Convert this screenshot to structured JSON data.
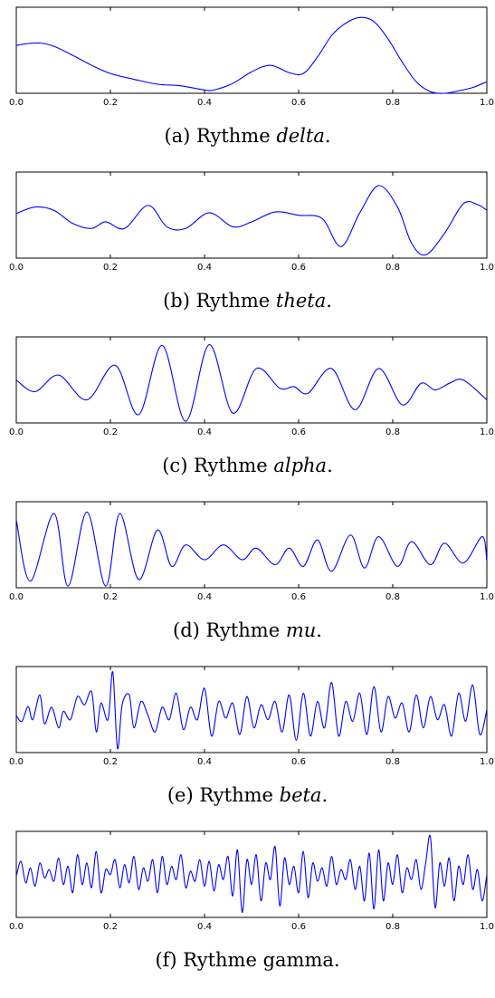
{
  "chart_data": [
    {
      "type": "line",
      "caption": {
        "prefix": "(a) Rythme ",
        "name": "delta",
        "name_italic": true,
        "suffix": "."
      },
      "xlim": [
        0.0,
        1.0
      ],
      "ylim": [
        0,
        1
      ],
      "xticks": [
        "0.0",
        "0.2",
        "0.4",
        "0.6",
        "0.8",
        "1.0"
      ],
      "x": [
        0.0,
        0.02,
        0.05,
        0.08,
        0.12,
        0.16,
        0.2,
        0.25,
        0.3,
        0.35,
        0.4,
        0.42,
        0.46,
        0.5,
        0.54,
        0.58,
        0.61,
        0.64,
        0.67,
        0.7,
        0.73,
        0.76,
        0.79,
        0.82,
        0.85,
        0.88,
        0.91,
        0.94,
        0.97,
        1.0
      ],
      "values": [
        0.58,
        0.6,
        0.61,
        0.57,
        0.46,
        0.34,
        0.24,
        0.17,
        0.11,
        0.09,
        0.04,
        0.04,
        0.12,
        0.26,
        0.34,
        0.25,
        0.24,
        0.44,
        0.7,
        0.85,
        0.92,
        0.87,
        0.66,
        0.38,
        0.14,
        0.02,
        0.0,
        0.03,
        0.07,
        0.14
      ]
    },
    {
      "type": "line",
      "caption": {
        "prefix": "(b) Rythme ",
        "name": "theta",
        "name_italic": true,
        "suffix": "."
      },
      "xlim": [
        0.0,
        1.0
      ],
      "ylim": [
        0,
        1
      ],
      "xticks": [
        "0.0",
        "0.2",
        "0.4",
        "0.6",
        "0.8",
        "1.0"
      ],
      "x": [
        0.0,
        0.04,
        0.08,
        0.12,
        0.16,
        0.19,
        0.23,
        0.28,
        0.32,
        0.36,
        0.41,
        0.46,
        0.5,
        0.55,
        0.6,
        0.65,
        0.69,
        0.73,
        0.77,
        0.81,
        0.84,
        0.87,
        0.91,
        0.95,
        0.98,
        1.0
      ],
      "values": [
        0.54,
        0.62,
        0.58,
        0.42,
        0.36,
        0.44,
        0.36,
        0.64,
        0.38,
        0.36,
        0.55,
        0.38,
        0.44,
        0.56,
        0.52,
        0.48,
        0.14,
        0.55,
        0.88,
        0.62,
        0.18,
        0.04,
        0.3,
        0.66,
        0.65,
        0.58
      ]
    },
    {
      "type": "line",
      "caption": {
        "prefix": "(c) Rythme ",
        "name": "alpha",
        "name_italic": true,
        "suffix": "."
      },
      "xlim": [
        0.0,
        1.0
      ],
      "ylim": [
        0,
        1
      ],
      "xticks": [
        "0.0",
        "0.2",
        "0.4",
        "0.6",
        "0.8",
        "1.0"
      ],
      "x": [
        0.0,
        0.04,
        0.09,
        0.15,
        0.21,
        0.26,
        0.31,
        0.36,
        0.41,
        0.46,
        0.51,
        0.56,
        0.59,
        0.62,
        0.67,
        0.72,
        0.77,
        0.82,
        0.86,
        0.89,
        0.92,
        0.95,
        1.0
      ],
      "values": [
        0.52,
        0.38,
        0.58,
        0.28,
        0.7,
        0.1,
        0.94,
        0.02,
        0.95,
        0.12,
        0.66,
        0.42,
        0.44,
        0.36,
        0.66,
        0.16,
        0.66,
        0.22,
        0.48,
        0.4,
        0.48,
        0.52,
        0.28
      ]
    },
    {
      "type": "line",
      "caption": {
        "prefix": "(d) Rythme ",
        "name": "mu",
        "name_italic": true,
        "suffix": "."
      },
      "xlim": [
        0.0,
        1.0
      ],
      "ylim": [
        0,
        1
      ],
      "xticks": [
        "0.0",
        "0.2",
        "0.4",
        "0.6",
        "0.8",
        "1.0"
      ],
      "x": [
        0.0,
        0.03,
        0.08,
        0.11,
        0.15,
        0.19,
        0.22,
        0.26,
        0.3,
        0.33,
        0.36,
        0.4,
        0.44,
        0.48,
        0.51,
        0.55,
        0.58,
        0.61,
        0.64,
        0.67,
        0.71,
        0.74,
        0.77,
        0.81,
        0.84,
        0.88,
        0.91,
        0.95,
        0.99,
        1.0
      ],
      "values": [
        0.82,
        0.08,
        0.9,
        0.02,
        0.92,
        0.02,
        0.9,
        0.1,
        0.7,
        0.26,
        0.52,
        0.34,
        0.52,
        0.34,
        0.48,
        0.28,
        0.48,
        0.26,
        0.58,
        0.2,
        0.64,
        0.24,
        0.62,
        0.26,
        0.56,
        0.28,
        0.54,
        0.3,
        0.62,
        0.32
      ]
    },
    {
      "type": "line",
      "caption": {
        "prefix": "(e) Rythme ",
        "name": "beta",
        "name_italic": true,
        "suffix": "."
      },
      "xlim": [
        0.0,
        1.0
      ],
      "ylim": [
        0,
        1
      ],
      "xticks": [
        "0.0",
        "0.2",
        "0.4",
        "0.6",
        "0.8",
        "1.0"
      ],
      "x": [
        0.0,
        0.012,
        0.025,
        0.035,
        0.05,
        0.06,
        0.075,
        0.09,
        0.1,
        0.115,
        0.13,
        0.145,
        0.16,
        0.17,
        0.18,
        0.195,
        0.205,
        0.215,
        0.225,
        0.24,
        0.25,
        0.265,
        0.28,
        0.295,
        0.31,
        0.325,
        0.34,
        0.355,
        0.37,
        0.385,
        0.4,
        0.415,
        0.43,
        0.445,
        0.46,
        0.475,
        0.49,
        0.505,
        0.52,
        0.535,
        0.55,
        0.565,
        0.58,
        0.595,
        0.61,
        0.625,
        0.64,
        0.655,
        0.67,
        0.685,
        0.7,
        0.715,
        0.73,
        0.745,
        0.76,
        0.775,
        0.79,
        0.805,
        0.82,
        0.835,
        0.85,
        0.865,
        0.88,
        0.895,
        0.91,
        0.925,
        0.94,
        0.955,
        0.97,
        0.985,
        1.0
      ],
      "values": [
        0.45,
        0.38,
        0.56,
        0.4,
        0.7,
        0.35,
        0.55,
        0.3,
        0.5,
        0.4,
        0.68,
        0.58,
        0.74,
        0.25,
        0.6,
        0.4,
        0.98,
        0.05,
        0.58,
        0.7,
        0.3,
        0.62,
        0.45,
        0.25,
        0.55,
        0.4,
        0.72,
        0.28,
        0.55,
        0.4,
        0.78,
        0.2,
        0.62,
        0.42,
        0.6,
        0.22,
        0.68,
        0.3,
        0.58,
        0.4,
        0.62,
        0.25,
        0.7,
        0.15,
        0.72,
        0.2,
        0.62,
        0.3,
        0.85,
        0.2,
        0.62,
        0.38,
        0.72,
        0.22,
        0.8,
        0.25,
        0.68,
        0.42,
        0.6,
        0.25,
        0.7,
        0.3,
        0.68,
        0.4,
        0.58,
        0.2,
        0.72,
        0.38,
        0.82,
        0.22,
        0.52
      ]
    },
    {
      "type": "line",
      "caption": {
        "prefix": "(f) Rythme ",
        "name": "gamma",
        "name_italic": false,
        "suffix": "."
      },
      "xlim": [
        0.0,
        1.0
      ],
      "ylim": [
        0,
        1
      ],
      "xticks": [
        "0.0",
        "0.2",
        "0.4",
        "0.6",
        "0.8",
        "1.0"
      ],
      "x": [
        0.0,
        0.01,
        0.02,
        0.03,
        0.04,
        0.05,
        0.06,
        0.07,
        0.08,
        0.09,
        0.1,
        0.11,
        0.12,
        0.13,
        0.14,
        0.15,
        0.16,
        0.17,
        0.18,
        0.19,
        0.2,
        0.21,
        0.22,
        0.23,
        0.24,
        0.25,
        0.26,
        0.27,
        0.28,
        0.29,
        0.3,
        0.31,
        0.32,
        0.33,
        0.34,
        0.35,
        0.36,
        0.37,
        0.38,
        0.39,
        0.4,
        0.41,
        0.42,
        0.43,
        0.44,
        0.45,
        0.46,
        0.47,
        0.48,
        0.49,
        0.5,
        0.51,
        0.52,
        0.53,
        0.54,
        0.55,
        0.56,
        0.57,
        0.58,
        0.59,
        0.6,
        0.61,
        0.62,
        0.63,
        0.64,
        0.65,
        0.66,
        0.67,
        0.68,
        0.69,
        0.7,
        0.71,
        0.72,
        0.73,
        0.74,
        0.75,
        0.76,
        0.77,
        0.78,
        0.79,
        0.8,
        0.81,
        0.82,
        0.83,
        0.84,
        0.85,
        0.86,
        0.87,
        0.88,
        0.89,
        0.9,
        0.91,
        0.92,
        0.93,
        0.94,
        0.95,
        0.96,
        0.97,
        0.98,
        0.99,
        1.0
      ],
      "values": [
        0.5,
        0.68,
        0.42,
        0.6,
        0.38,
        0.66,
        0.48,
        0.58,
        0.44,
        0.72,
        0.4,
        0.62,
        0.3,
        0.76,
        0.4,
        0.66,
        0.36,
        0.8,
        0.3,
        0.58,
        0.52,
        0.7,
        0.36,
        0.64,
        0.42,
        0.74,
        0.34,
        0.6,
        0.44,
        0.7,
        0.3,
        0.74,
        0.4,
        0.62,
        0.46,
        0.76,
        0.36,
        0.56,
        0.44,
        0.7,
        0.38,
        0.68,
        0.32,
        0.64,
        0.46,
        0.74,
        0.26,
        0.82,
        0.06,
        0.7,
        0.4,
        0.76,
        0.2,
        0.66,
        0.46,
        0.86,
        0.14,
        0.72,
        0.4,
        0.62,
        0.3,
        0.8,
        0.24,
        0.66,
        0.44,
        0.6,
        0.38,
        0.74,
        0.4,
        0.58,
        0.46,
        0.7,
        0.34,
        0.62,
        0.2,
        0.78,
        0.1,
        0.82,
        0.2,
        0.66,
        0.4,
        0.76,
        0.3,
        0.6,
        0.46,
        0.7,
        0.34,
        0.66,
        0.98,
        0.12,
        0.66,
        0.38,
        0.72,
        0.2,
        0.62,
        0.4,
        0.76,
        0.34,
        0.58,
        0.2,
        0.52
      ]
    }
  ]
}
